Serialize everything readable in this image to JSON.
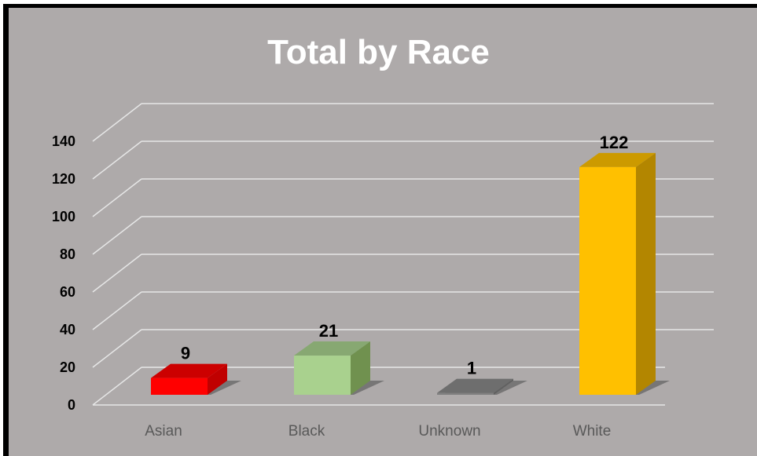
{
  "chart_data": {
    "type": "bar",
    "style": "3d-column",
    "title": "Total by Race",
    "categories": [
      "Asian",
      "Black",
      "Unknown",
      "White"
    ],
    "values": [
      9,
      21,
      1,
      122
    ],
    "colors": [
      "#ff0000",
      "#a9d18e",
      "#808080",
      "#ffc000"
    ],
    "side_colors": [
      "#c00000",
      "#70914f",
      "#606060",
      "#b38600"
    ],
    "top_colors": [
      "#cc0000",
      "#87a872",
      "#6e6e6e",
      "#cc9a00"
    ],
    "yticks": [
      "0",
      "20",
      "40",
      "60",
      "80",
      "100",
      "120",
      "140"
    ],
    "ylim": [
      0,
      140
    ],
    "grid": true,
    "data_labels": [
      "9",
      "21",
      "1",
      "122"
    ],
    "background": "#aeaaaa"
  }
}
